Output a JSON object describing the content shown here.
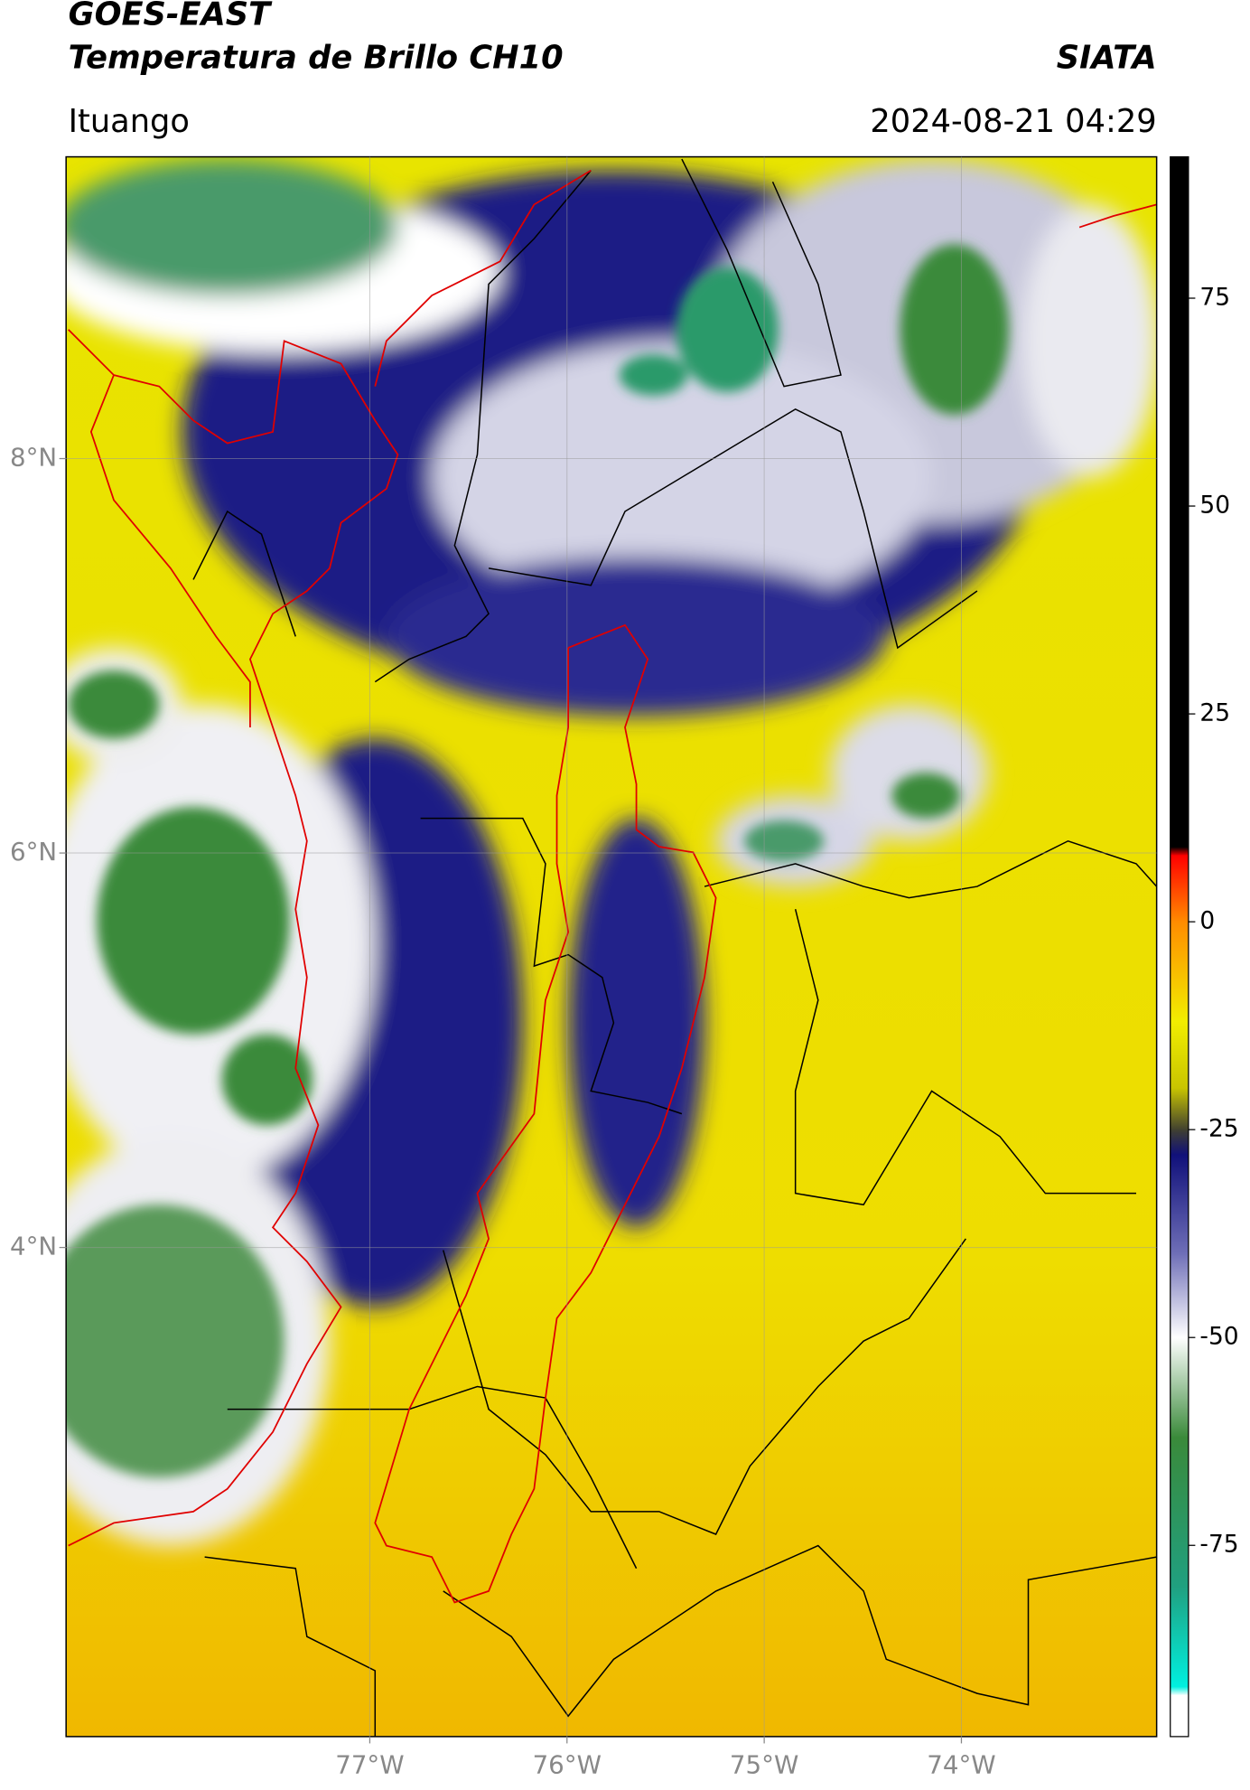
{
  "chart_data": {
    "type": "map",
    "title": "GOES-EAST",
    "subtitle": "Temperatura de Brillo CH10",
    "source": "SIATA",
    "location": "Ituango",
    "timestamp": "2024-08-21 04:29",
    "xlim": [
      -78.54,
      -73.01
    ],
    "ylim": [
      1.52,
      9.53
    ],
    "xticks": [
      {
        "value": -77,
        "label": "77°W"
      },
      {
        "value": -76,
        "label": "76°W"
      },
      {
        "value": -75,
        "label": "75°W"
      },
      {
        "value": -74,
        "label": "74°W"
      }
    ],
    "yticks": [
      {
        "value": 8,
        "label": "8°N"
      },
      {
        "value": 6,
        "label": "6°N"
      },
      {
        "value": 4,
        "label": "4°N"
      }
    ],
    "grid": true,
    "colorbar": {
      "lim": [
        -98,
        92
      ],
      "ticks": [
        75,
        50,
        25,
        0,
        -25,
        -50,
        -75
      ],
      "stops": [
        {
          "value": 92,
          "color": "#000000"
        },
        {
          "value": 9,
          "color": "#000000"
        },
        {
          "value": 8,
          "color": "#ff0000"
        },
        {
          "value": 0,
          "color": "#ff8c00"
        },
        {
          "value": -12,
          "color": "#f2ee00"
        },
        {
          "value": -20,
          "color": "#c8c400"
        },
        {
          "value": -25,
          "color": "#404030"
        },
        {
          "value": -28,
          "color": "#10107a"
        },
        {
          "value": -40,
          "color": "#7070b8"
        },
        {
          "value": -50,
          "color": "#ffffff"
        },
        {
          "value": -62,
          "color": "#3a8a3a"
        },
        {
          "value": -80,
          "color": "#20a080"
        },
        {
          "value": -92,
          "color": "#00f0e0"
        },
        {
          "value": -93,
          "color": "#ffffff"
        },
        {
          "value": -98,
          "color": "#ffffff"
        }
      ]
    }
  }
}
